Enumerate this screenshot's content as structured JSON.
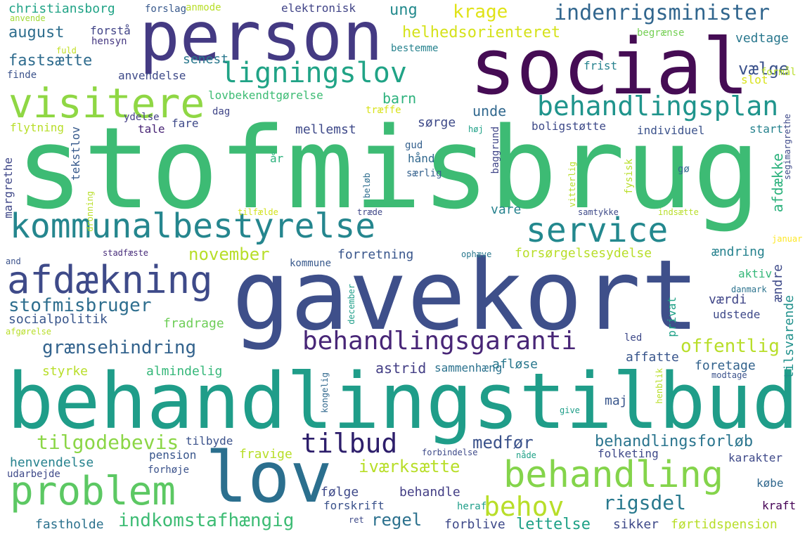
{
  "colors": {
    "background": "#ffffff",
    "palette": [
      "#440154",
      "#482878",
      "#3e4989",
      "#31688e",
      "#26828e",
      "#1f9e89",
      "#35b779",
      "#6ece58",
      "#b5de2b",
      "#fde725"
    ]
  },
  "words": [
    {
      "text": "stofmisbrug",
      "color": "#3dbb74"
    },
    {
      "text": "gavekort",
      "color": "#3e4f8a"
    },
    {
      "text": "behandlingstilbud",
      "color": "#1f9d89"
    },
    {
      "text": "social",
      "color": "#450c54"
    },
    {
      "text": "person",
      "color": "#443a83"
    },
    {
      "text": "lov",
      "color": "#2b6f8e"
    },
    {
      "text": "kommunalbestyrelse",
      "color": "#25868e"
    },
    {
      "text": "service",
      "color": "#23888e"
    },
    {
      "text": "visitere",
      "color": "#8fd744"
    },
    {
      "text": "afdækning",
      "color": "#3e4a89"
    },
    {
      "text": "behandlingsgaranti",
      "color": "#482677"
    },
    {
      "text": "problem",
      "color": "#5cc863"
    },
    {
      "text": "behandling",
      "color": "#84d44b"
    },
    {
      "text": "ligningslov",
      "color": "#20a386"
    },
    {
      "text": "behandlingsplan",
      "color": "#1f948c"
    },
    {
      "text": "indenrigsminister",
      "color": "#31668e"
    },
    {
      "text": "stofmisbruger",
      "color": "#2e6e8e"
    },
    {
      "text": "grænsehindring",
      "color": "#33638d"
    },
    {
      "text": "tilbud",
      "color": "#2d1e6b"
    },
    {
      "text": "behov",
      "color": "#b8de29"
    },
    {
      "text": "tilgodebevis",
      "color": "#8bd646"
    },
    {
      "text": "rigsdel",
      "color": "#29798e"
    },
    {
      "text": "indkomstafhængig",
      "color": "#3dbc74"
    },
    {
      "text": "offentlig",
      "color": "#b8de29"
    },
    {
      "text": "behandlingsforløb",
      "color": "#2b758e"
    },
    {
      "text": "medfør",
      "color": "#3b528b"
    },
    {
      "text": "iværksætte",
      "color": "#b8de29"
    },
    {
      "text": "november",
      "color": "#b8de29"
    },
    {
      "text": "helhedsorienteret",
      "color": "#d5e21a"
    },
    {
      "text": "krage",
      "color": "#e0e318"
    },
    {
      "text": "august",
      "color": "#2e6e8e"
    },
    {
      "text": "fastsætte",
      "color": "#2f6c8e"
    },
    {
      "text": "vælge",
      "color": "#3b528b"
    },
    {
      "text": "barn",
      "color": "#2db27d"
    },
    {
      "text": "ung",
      "color": "#238a8d"
    },
    {
      "text": "unde",
      "color": "#31688e"
    },
    {
      "text": "regel",
      "color": "#2c718e"
    },
    {
      "text": "lettelse",
      "color": "#1fa187"
    },
    {
      "text": "forsørgelsesydelse",
      "color": "#b8de29"
    },
    {
      "text": "forretning",
      "color": "#39568c"
    },
    {
      "text": "socialpolitik",
      "color": "#39568c"
    },
    {
      "text": "christiansborg",
      "color": "#20a386"
    },
    {
      "text": "elektronisk",
      "color": "#414487"
    },
    {
      "text": "anmode",
      "color": "#b8de29"
    },
    {
      "text": "forslag",
      "color": "#38598c"
    },
    {
      "text": "anvende",
      "color": "#a2da37"
    },
    {
      "text": "forstå",
      "color": "#414487"
    },
    {
      "text": "hensyn",
      "color": "#453781"
    },
    {
      "text": "fuld",
      "color": "#c2df23"
    },
    {
      "text": "finde",
      "color": "#3b528b"
    },
    {
      "text": "senest",
      "color": "#2a788e"
    },
    {
      "text": "anvendelse",
      "color": "#3e4a89"
    },
    {
      "text": "lovbekendtgørelse",
      "color": "#3dbc74"
    },
    {
      "text": "begrænse",
      "color": "#75d054"
    },
    {
      "text": "bestemme",
      "color": "#26828e"
    },
    {
      "text": "vedtage",
      "color": "#2a788e"
    },
    {
      "text": "slot",
      "color": "#d8e219"
    },
    {
      "text": "frist",
      "color": "#26828e"
    },
    {
      "text": "formål",
      "color": "#b8de29"
    },
    {
      "text": "træffe",
      "color": "#d8e219"
    },
    {
      "text": "dag",
      "color": "#404688"
    },
    {
      "text": "ydelse",
      "color": "#433e85"
    },
    {
      "text": "tale",
      "color": "#482475"
    },
    {
      "text": "fare",
      "color": "#3e4989"
    },
    {
      "text": "flytning",
      "color": "#b8de29"
    },
    {
      "text": "mellemst",
      "color": "#3e4989"
    },
    {
      "text": "sørge",
      "color": "#3e4a89"
    },
    {
      "text": "boligstøtte",
      "color": "#3e4a89"
    },
    {
      "text": "individuel",
      "color": "#3b528b"
    },
    {
      "text": "start",
      "color": "#26828e"
    },
    {
      "text": "høj",
      "color": "#1fa187"
    },
    {
      "text": "gud",
      "color": "#35608d"
    },
    {
      "text": "hånd",
      "color": "#31688e"
    },
    {
      "text": "særlig",
      "color": "#34618d"
    },
    {
      "text": "år",
      "color": "#2db27d"
    },
    {
      "text": "gø",
      "color": "#31688e"
    },
    {
      "text": "tekstlov",
      "color": "#375a8c"
    },
    {
      "text": "margrethe",
      "color": "#3f4788"
    },
    {
      "text": "dronning",
      "color": "#b8de29"
    },
    {
      "text": "beløb",
      "color": "#2e6e8e"
    },
    {
      "text": "baggrund",
      "color": "#404688"
    },
    {
      "text": "vitterlig",
      "color": "#b8de29"
    },
    {
      "text": "fysisk",
      "color": "#b8de29"
    },
    {
      "text": "afdække",
      "color": "#2db27d"
    },
    {
      "text": "segimargrethe",
      "color": "#3e4989"
    },
    {
      "text": "tilfælde",
      "color": "#d2e21b"
    },
    {
      "text": "træde",
      "color": "#3f4788"
    },
    {
      "text": "samtykke",
      "color": "#3e4a89"
    },
    {
      "text": "vare",
      "color": "#26828e"
    },
    {
      "text": "indsætte",
      "color": "#b8de29"
    },
    {
      "text": "januar",
      "color": "#fde725"
    },
    {
      "text": "stadfæste",
      "color": "#472c7a"
    },
    {
      "text": "and",
      "color": "#3b528b"
    },
    {
      "text": "kommune",
      "color": "#38598c"
    },
    {
      "text": "ophæve",
      "color": "#2a788e"
    },
    {
      "text": "ændring",
      "color": "#26828e"
    },
    {
      "text": "aktiv",
      "color": "#35b779"
    },
    {
      "text": "danmark",
      "color": "#2c738e"
    },
    {
      "text": "ændre",
      "color": "#3e4a89"
    },
    {
      "text": "værdi",
      "color": "#404688"
    },
    {
      "text": "tilsvarende",
      "color": "#21918c"
    },
    {
      "text": "udstede",
      "color": "#3e4989"
    },
    {
      "text": "privat",
      "color": "#1fa187"
    },
    {
      "text": "led",
      "color": "#3e4989"
    },
    {
      "text": "december",
      "color": "#1f9e89"
    },
    {
      "text": "fradrage",
      "color": "#6ece58"
    },
    {
      "text": "afgørelse",
      "color": "#b8de29"
    },
    {
      "text": "affatte",
      "color": "#39568c"
    },
    {
      "text": "foretage",
      "color": "#33638d"
    },
    {
      "text": "styrke",
      "color": "#b8de29"
    },
    {
      "text": "almindelig",
      "color": "#35b779"
    },
    {
      "text": "astrid",
      "color": "#433e85"
    },
    {
      "text": "sammenhæng",
      "color": "#2c728e"
    },
    {
      "text": "afløse",
      "color": "#2a788e"
    },
    {
      "text": "kongelig",
      "color": "#31688e"
    },
    {
      "text": "henblik",
      "color": "#b8de29"
    },
    {
      "text": "modtage",
      "color": "#3b528b"
    },
    {
      "text": "maj",
      "color": "#39568c"
    },
    {
      "text": "give",
      "color": "#1f9e89"
    },
    {
      "text": "tilbyde",
      "color": "#3b528b"
    },
    {
      "text": "fravige",
      "color": "#b8de29"
    },
    {
      "text": "pension",
      "color": "#39568c"
    },
    {
      "text": "forhøje",
      "color": "#3b528b"
    },
    {
      "text": "henvendelse",
      "color": "#26828e"
    },
    {
      "text": "udarbejde",
      "color": "#3e4989"
    },
    {
      "text": "forbindelse",
      "color": "#3e4a89"
    },
    {
      "text": "nåde",
      "color": "#1fa187"
    },
    {
      "text": "folketing",
      "color": "#3e4989"
    },
    {
      "text": "karakter",
      "color": "#3e4989"
    },
    {
      "text": "følge",
      "color": "#3e4989"
    },
    {
      "text": "behandle",
      "color": "#433e85"
    },
    {
      "text": "købe",
      "color": "#31688e"
    },
    {
      "text": "forskrift",
      "color": "#3b528b"
    },
    {
      "text": "heraf",
      "color": "#1f9e89"
    },
    {
      "text": "ret",
      "color": "#3e4a89"
    },
    {
      "text": "kraft",
      "color": "#440154"
    },
    {
      "text": "fastholde",
      "color": "#2c728e"
    },
    {
      "text": "forblive",
      "color": "#3e4989"
    },
    {
      "text": "sikker",
      "color": "#3e4989"
    },
    {
      "text": "førtidspension",
      "color": "#b8de29"
    }
  ]
}
